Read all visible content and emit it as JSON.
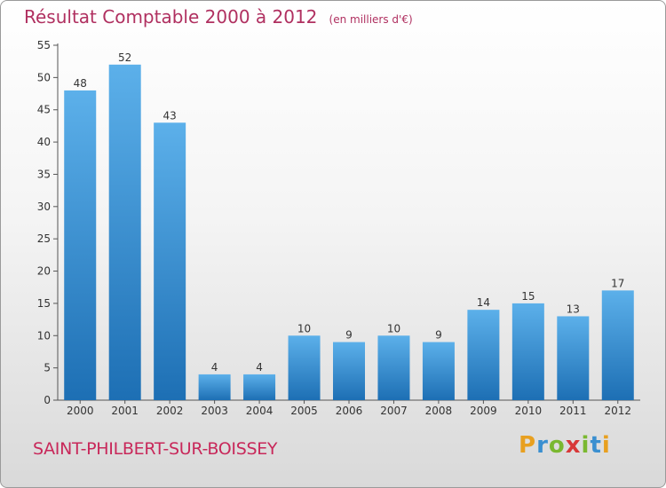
{
  "header": {
    "title": "Résultat Comptable 2000 à 2012",
    "subtitle": "(en milliers d'€)"
  },
  "footer": {
    "city": "SAINT-PHILBERT-SUR-BOISSEY",
    "logo_letters": [
      {
        "char": "P",
        "color": "#e8a020"
      },
      {
        "char": "r",
        "color": "#3a8fd0"
      },
      {
        "char": "o",
        "color": "#7ab830"
      },
      {
        "char": "x",
        "color": "#d83838"
      },
      {
        "char": "i",
        "color": "#7ab830"
      },
      {
        "char": "t",
        "color": "#3a8fd0"
      },
      {
        "char": "i",
        "color": "#e8a020"
      }
    ]
  },
  "chart_data": {
    "type": "bar",
    "title": "Résultat Comptable 2000 à 2012",
    "xlabel": "",
    "ylabel": "",
    "categories": [
      "2000",
      "2001",
      "2002",
      "2003",
      "2004",
      "2005",
      "2006",
      "2007",
      "2008",
      "2009",
      "2010",
      "2011",
      "2012"
    ],
    "values": [
      48,
      52,
      43,
      4,
      4,
      10,
      9,
      10,
      9,
      14,
      15,
      13,
      17
    ],
    "ylim": [
      0,
      55
    ],
    "yticks": [
      0,
      5,
      10,
      15,
      20,
      25,
      30,
      35,
      40,
      45,
      50,
      55
    ],
    "grid": false,
    "bar_color_light": "#5cb0ea",
    "bar_color_dark": "#1d6fb4",
    "axis_color": "#555555"
  }
}
